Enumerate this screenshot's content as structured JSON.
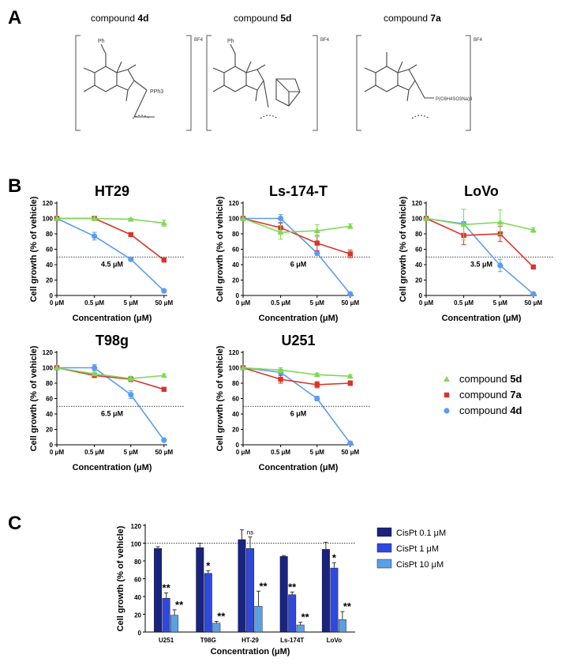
{
  "panels": {
    "a": "A",
    "b": "B",
    "c": "C"
  },
  "compounds": [
    {
      "prefix": "compound",
      "id": "4d",
      "substituent_n": "Ph",
      "ligand": "PPh3",
      "counter": "BF4"
    },
    {
      "prefix": "compound",
      "id": "5d",
      "substituent_n": "Ph",
      "ligand": "",
      "counter": "BF4"
    },
    {
      "prefix": "compound",
      "id": "7a",
      "substituent_n": "",
      "ligand": "P(C6H4SO3Na)3",
      "counter": "BF4"
    }
  ],
  "chart_data": [
    {
      "type": "line",
      "title": "HT29",
      "xlabel": "Concentration (μM)",
      "ylabel": "Cell growth (% of vehicle)",
      "categories": [
        "0 μM",
        "0.5 μM",
        "5 μM",
        "50 μM"
      ],
      "ylim": [
        0,
        120
      ],
      "yticks": [
        0,
        20,
        40,
        60,
        80,
        100,
        120
      ],
      "threshold": 50,
      "ic50_label": "4.5 μM",
      "series": [
        {
          "name": "compound 5d",
          "values": [
            100,
            100,
            99,
            94
          ],
          "errors": [
            0,
            0,
            1,
            4
          ]
        },
        {
          "name": "compound 7a",
          "values": [
            100,
            100,
            79,
            46
          ],
          "errors": [
            0,
            0,
            2,
            1
          ]
        },
        {
          "name": "compound 4d",
          "values": [
            100,
            77,
            47,
            6
          ],
          "errors": [
            0,
            5,
            2,
            1
          ]
        }
      ]
    },
    {
      "type": "line",
      "title": "Ls-174-T",
      "xlabel": "Concentration (μM)",
      "ylabel": "Cell growth (% of vehicle)",
      "categories": [
        "0 μM",
        "0.5 μM",
        "5 μM",
        "50 μM"
      ],
      "ylim": [
        0,
        120
      ],
      "yticks": [
        0,
        20,
        40,
        60,
        80,
        100,
        120
      ],
      "threshold": 50,
      "ic50_label": "6 μM",
      "series": [
        {
          "name": "compound 5d",
          "values": [
            100,
            82,
            84,
            90
          ],
          "errors": [
            0,
            9,
            8,
            3
          ]
        },
        {
          "name": "compound 7a",
          "values": [
            100,
            88,
            68,
            54
          ],
          "errors": [
            0,
            6,
            10,
            5
          ]
        },
        {
          "name": "compound 4d",
          "values": [
            100,
            100,
            55,
            2
          ],
          "errors": [
            0,
            5,
            3,
            1
          ]
        }
      ]
    },
    {
      "type": "line",
      "title": "LoVo",
      "xlabel": "Concentration (μM)",
      "ylabel": "Cell growth (% of vehicle)",
      "categories": [
        "0 μM",
        "0.5 μM",
        "5 μM",
        "50 μM"
      ],
      "ylim": [
        0,
        120
      ],
      "yticks": [
        0,
        20,
        40,
        60,
        80,
        100,
        120
      ],
      "threshold": 50,
      "ic50_label": "3.5 μM",
      "series": [
        {
          "name": "compound 5d",
          "values": [
            100,
            92,
            95,
            85
          ],
          "errors": [
            0,
            20,
            16,
            3
          ]
        },
        {
          "name": "compound 7a",
          "values": [
            100,
            78,
            80,
            37
          ],
          "errors": [
            0,
            12,
            10,
            1
          ]
        },
        {
          "name": "compound 4d",
          "values": [
            100,
            93,
            39,
            2
          ],
          "errors": [
            0,
            3,
            8,
            1
          ]
        }
      ]
    },
    {
      "type": "line",
      "title": "T98g",
      "xlabel": "Concentration (μM)",
      "ylabel": "Cell growth (% of vehicle)",
      "categories": [
        "0 μM",
        "0.5 μM",
        "5 μM",
        "50 μM"
      ],
      "ylim": [
        0,
        120
      ],
      "yticks": [
        0,
        20,
        40,
        60,
        80,
        100,
        120
      ],
      "threshold": 50,
      "ic50_label": "6.5 μM",
      "series": [
        {
          "name": "compound 5d",
          "values": [
            100,
            92,
            86,
            90
          ],
          "errors": [
            0,
            2,
            3,
            2
          ]
        },
        {
          "name": "compound 7a",
          "values": [
            100,
            90,
            85,
            72
          ],
          "errors": [
            0,
            2,
            3,
            2
          ]
        },
        {
          "name": "compound 4d",
          "values": [
            100,
            100,
            65,
            6
          ],
          "errors": [
            0,
            4,
            5,
            1
          ]
        }
      ]
    },
    {
      "type": "line",
      "title": "U251",
      "xlabel": "Concentration (μM)",
      "ylabel": "Cell growth (% of vehicle)",
      "categories": [
        "0 μM",
        "0.5 μM",
        "5 μM",
        "50 μM"
      ],
      "ylim": [
        0,
        120
      ],
      "yticks": [
        0,
        20,
        40,
        60,
        80,
        100,
        120
      ],
      "threshold": 50,
      "ic50_label": "6 μM",
      "series": [
        {
          "name": "compound 5d",
          "values": [
            100,
            97,
            91,
            89
          ],
          "errors": [
            0,
            3,
            2,
            2
          ]
        },
        {
          "name": "compound 7a",
          "values": [
            100,
            85,
            78,
            80
          ],
          "errors": [
            0,
            5,
            4,
            3
          ]
        },
        {
          "name": "compound 4d",
          "values": [
            100,
            94,
            60,
            2
          ],
          "errors": [
            0,
            4,
            3,
            1
          ]
        }
      ]
    },
    {
      "type": "bar",
      "xlabel": "Concentration (μM)",
      "ylabel": "Cell growth (% of vehicle)",
      "categories": [
        "U251",
        "T98G",
        "HT-29",
        "Ls-174T",
        "LoVo"
      ],
      "ylim": [
        0,
        120
      ],
      "yticks": [
        0,
        20,
        40,
        60,
        80,
        100,
        120
      ],
      "threshold": 100,
      "series": [
        {
          "name": "CisPt 0.1 μM",
          "values": [
            94,
            95,
            104,
            85,
            93
          ],
          "errors": [
            2,
            5,
            11,
            1,
            8
          ],
          "marks": [
            "",
            "",
            "",
            "",
            ""
          ]
        },
        {
          "name": "CisPt 1 μM",
          "values": [
            38,
            66,
            94,
            42,
            72
          ],
          "errors": [
            6,
            3,
            13,
            3,
            6
          ],
          "marks": [
            "**",
            "*",
            "ns",
            "**",
            "*"
          ]
        },
        {
          "name": "CisPt 10 μM",
          "values": [
            19,
            10,
            29,
            8,
            14
          ],
          "errors": [
            6,
            2,
            17,
            3,
            9
          ],
          "marks": [
            "**",
            "**",
            "**",
            "**",
            "**"
          ]
        }
      ],
      "legend_position": "right"
    }
  ],
  "legend_b": {
    "items": [
      {
        "prefix": "compound",
        "id": "5d",
        "color": "#7ed957",
        "marker": "triangle"
      },
      {
        "prefix": "compound",
        "id": "7a",
        "color": "#d9342b",
        "marker": "square"
      },
      {
        "prefix": "compound",
        "id": "4d",
        "color": "#5b9cf0",
        "marker": "circle"
      }
    ]
  },
  "colors": {
    "line_series": [
      "#7ed957",
      "#d9342b",
      "#5b9cf0"
    ],
    "bar_series": [
      "#1a237e",
      "#2f49e0",
      "#5aa0e6"
    ]
  }
}
